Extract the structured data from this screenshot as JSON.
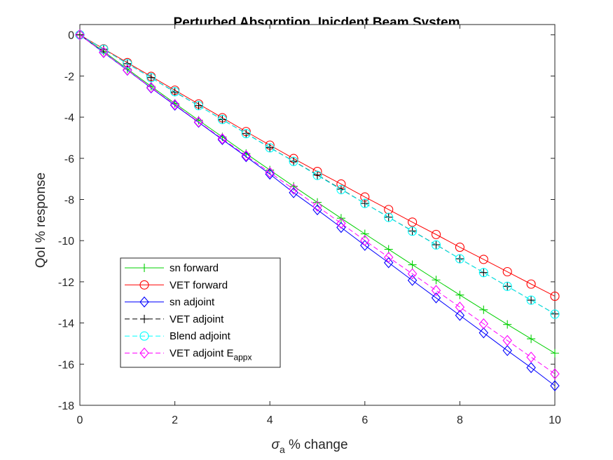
{
  "chart_data": {
    "type": "line",
    "title": "Perturbed Absorption, Inicdent Beam System",
    "xlabel": {
      "symbol": "σ",
      "subscript": "a",
      "text": " % change"
    },
    "ylabel": "QoI % response",
    "xlim": [
      0,
      10
    ],
    "ylim": [
      -18,
      0.5
    ],
    "x_ticks": [
      0,
      2,
      4,
      6,
      8,
      10
    ],
    "y_ticks": [
      0,
      -2,
      -4,
      -6,
      -8,
      -10,
      -12,
      -14,
      -16,
      -18
    ],
    "grid": false,
    "legend_position": "lower-left",
    "x": [
      0,
      0.5,
      1,
      1.5,
      2,
      2.5,
      3,
      3.5,
      4,
      4.5,
      5,
      5.5,
      6,
      6.5,
      7,
      7.5,
      8,
      8.5,
      9,
      9.5,
      10
    ],
    "series": [
      {
        "name": "sn forward",
        "color": "#00d000",
        "dash": "solid",
        "marker": "plus",
        "values": [
          0,
          -0.8,
          -1.66,
          -2.5,
          -3.33,
          -4.15,
          -4.96,
          -5.77,
          -6.57,
          -7.36,
          -8.14,
          -8.91,
          -9.67,
          -10.42,
          -11.17,
          -11.91,
          -12.64,
          -13.36,
          -14.07,
          -14.77,
          -15.47
        ]
      },
      {
        "name": "VET forward",
        "color": "#ff0000",
        "dash": "solid",
        "marker": "circle",
        "values": [
          0,
          -0.68,
          -1.35,
          -2.02,
          -2.69,
          -3.36,
          -4.03,
          -4.7,
          -5.36,
          -6.01,
          -6.64,
          -7.25,
          -7.88,
          -8.49,
          -9.1,
          -9.7,
          -10.32,
          -10.91,
          -11.51,
          -12.11,
          -12.7
        ]
      },
      {
        "name": "sn adjoint",
        "color": "#0000ff",
        "dash": "solid",
        "marker": "diamond",
        "values": [
          0,
          -0.86,
          -1.72,
          -2.58,
          -3.42,
          -4.25,
          -5.09,
          -5.92,
          -6.77,
          -7.67,
          -8.5,
          -9.36,
          -10.23,
          -11.07,
          -11.93,
          -12.78,
          -13.63,
          -14.48,
          -15.34,
          -16.17,
          -17.05
        ]
      },
      {
        "name": "VET adjoint",
        "color": "#000000",
        "dash": "dashed",
        "marker": "plus",
        "values": [
          0,
          -0.7,
          -1.4,
          -2.08,
          -2.78,
          -3.44,
          -4.12,
          -4.79,
          -5.48,
          -6.14,
          -6.81,
          -7.5,
          -8.19,
          -8.86,
          -9.53,
          -10.2,
          -10.88,
          -11.55,
          -12.22,
          -12.89,
          -13.56
        ]
      },
      {
        "name": "Blend adjoint",
        "color": "#00ffff",
        "dash": "dashed",
        "marker": "circle",
        "values": [
          0,
          -0.7,
          -1.4,
          -2.08,
          -2.76,
          -3.44,
          -4.11,
          -4.8,
          -5.49,
          -6.15,
          -6.83,
          -7.52,
          -8.19,
          -8.87,
          -9.54,
          -10.21,
          -10.88,
          -11.55,
          -12.22,
          -12.89,
          -13.57
        ]
      },
      {
        "name": "VET adjoint E",
        "name_subscript": "appx",
        "color": "#ff00ff",
        "dash": "dashed",
        "marker": "diamond",
        "values": [
          0,
          -0.85,
          -1.71,
          -2.56,
          -3.39,
          -4.23,
          -5.05,
          -5.87,
          -6.69,
          -7.5,
          -8.33,
          -9.16,
          -9.99,
          -10.81,
          -11.61,
          -12.42,
          -13.23,
          -14.04,
          -14.85,
          -15.66,
          -16.47
        ]
      }
    ]
  }
}
